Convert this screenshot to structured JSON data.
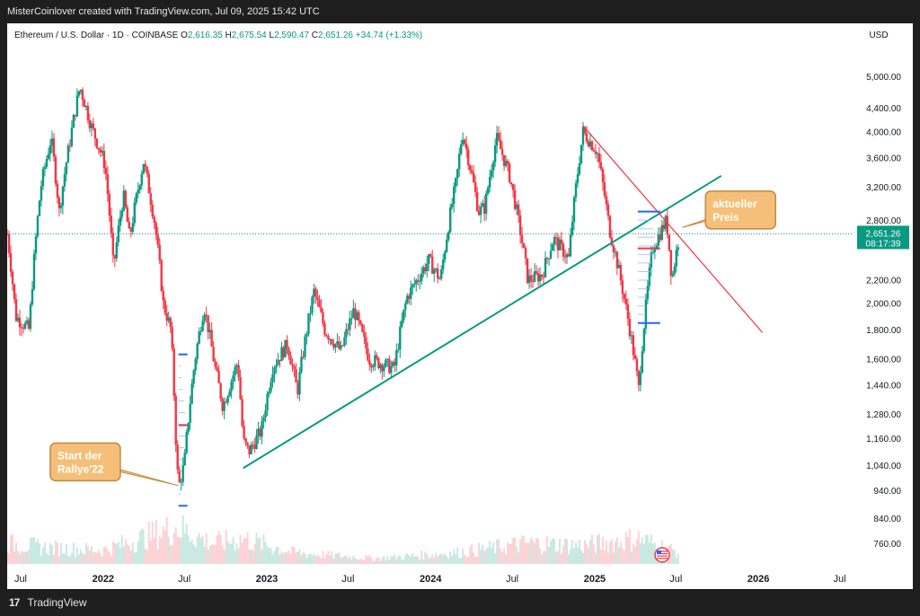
{
  "header": {
    "credit": "MisterCoinlover created with TradingView.com, Jul 09, 2025 15:42 UTC"
  },
  "footer": {
    "brand": "TradingView"
  },
  "chart_data": {
    "type": "candlestick",
    "symbol": "Ethereum / U.S. Dollar · 1D · COINBASE",
    "ohlc": {
      "o_label": "O",
      "o_value": "2,616.35",
      "h_label": "H",
      "h_value": "2,675.54",
      "l_label": "L",
      "l_value": "2,590.47",
      "c_label": "C",
      "c_value": "2,651.26",
      "change": "+34.74 (+1.33%)"
    },
    "currency": "USD",
    "y_scale": "log",
    "ylim": [
      700,
      5600
    ],
    "x_range": [
      "2021-06-01",
      "2026-08-01"
    ],
    "y_ticks": [
      {
        "value": 5000,
        "label": "5,000.00"
      },
      {
        "value": 4400,
        "label": "4,400.00"
      },
      {
        "value": 4000,
        "label": "4,000.00"
      },
      {
        "value": 3600,
        "label": "3,600.00"
      },
      {
        "value": 3200,
        "label": "3,200.00"
      },
      {
        "value": 2800,
        "label": "2,800.00"
      },
      {
        "value": 2200,
        "label": "2,200.00"
      },
      {
        "value": 2000,
        "label": "2,000.00"
      },
      {
        "value": 1800,
        "label": "1,800.00"
      },
      {
        "value": 1600,
        "label": "1,600.00"
      },
      {
        "value": 1440,
        "label": "1,440.00"
      },
      {
        "value": 1280,
        "label": "1,280.00"
      },
      {
        "value": 1160,
        "label": "1,160.00"
      },
      {
        "value": 1040,
        "label": "1,040.00"
      },
      {
        "value": 940,
        "label": "940.00"
      },
      {
        "value": 840,
        "label": "840.00"
      },
      {
        "value": 760,
        "label": "760.00"
      }
    ],
    "x_ticks": [
      {
        "date": "2021-07-01",
        "label": "Jul",
        "bold": false
      },
      {
        "date": "2022-01-01",
        "label": "2022",
        "bold": true
      },
      {
        "date": "2022-07-01",
        "label": "Jul",
        "bold": false
      },
      {
        "date": "2023-01-01",
        "label": "2023",
        "bold": true
      },
      {
        "date": "2023-07-01",
        "label": "Jul",
        "bold": false
      },
      {
        "date": "2024-01-01",
        "label": "2024",
        "bold": true
      },
      {
        "date": "2024-07-01",
        "label": "Jul",
        "bold": false
      },
      {
        "date": "2025-01-01",
        "label": "2025",
        "bold": true
      },
      {
        "date": "2025-07-01",
        "label": "Jul",
        "bold": false
      },
      {
        "date": "2026-01-01",
        "label": "2026",
        "bold": true
      },
      {
        "date": "2026-07-01",
        "label": "Jul",
        "bold": false
      }
    ],
    "price_path": [
      [
        "2021-06-01",
        2650
      ],
      [
        "2021-06-20",
        1900
      ],
      [
        "2021-07-20",
        1800
      ],
      [
        "2021-08-15",
        3200
      ],
      [
        "2021-09-07",
        3900
      ],
      [
        "2021-09-25",
        2900
      ],
      [
        "2021-10-20",
        3900
      ],
      [
        "2021-11-10",
        4800
      ],
      [
        "2021-12-05",
        4100
      ],
      [
        "2022-01-05",
        3500
      ],
      [
        "2022-01-24",
        2300
      ],
      [
        "2022-02-15",
        3100
      ],
      [
        "2022-03-01",
        2600
      ],
      [
        "2022-04-01",
        3550
      ],
      [
        "2022-04-25",
        2800
      ],
      [
        "2022-05-15",
        2000
      ],
      [
        "2022-06-01",
        1800
      ],
      [
        "2022-06-13",
        1100
      ],
      [
        "2022-06-18",
        950
      ],
      [
        "2022-07-01",
        1050
      ],
      [
        "2022-07-25",
        1600
      ],
      [
        "2022-08-14",
        1980
      ],
      [
        "2022-09-07",
        1550
      ],
      [
        "2022-09-25",
        1320
      ],
      [
        "2022-10-28",
        1580
      ],
      [
        "2022-11-09",
        1150
      ],
      [
        "2022-11-22",
        1100
      ],
      [
        "2022-12-20",
        1200
      ],
      [
        "2023-01-14",
        1550
      ],
      [
        "2023-02-16",
        1700
      ],
      [
        "2023-03-10",
        1400
      ],
      [
        "2023-04-16",
        2100
      ],
      [
        "2023-05-10",
        1800
      ],
      [
        "2023-06-15",
        1650
      ],
      [
        "2023-07-14",
        1950
      ],
      [
        "2023-08-17",
        1600
      ],
      [
        "2023-10-12",
        1540
      ],
      [
        "2023-11-09",
        2050
      ],
      [
        "2023-12-28",
        2380
      ],
      [
        "2024-01-23",
        2200
      ],
      [
        "2024-02-28",
        3300
      ],
      [
        "2024-03-12",
        4000
      ],
      [
        "2024-04-17",
        2900
      ],
      [
        "2024-05-01",
        2950
      ],
      [
        "2024-05-27",
        3900
      ],
      [
        "2024-06-25",
        3350
      ],
      [
        "2024-08-05",
        2200
      ],
      [
        "2024-09-06",
        2250
      ],
      [
        "2024-10-01",
        2600
      ],
      [
        "2024-11-04",
        2400
      ],
      [
        "2024-12-06",
        4000
      ],
      [
        "2025-01-06",
        3700
      ],
      [
        "2025-02-03",
        2700
      ],
      [
        "2025-03-10",
        2000
      ],
      [
        "2025-04-09",
        1420
      ],
      [
        "2025-05-10",
        2500
      ],
      [
        "2025-06-10",
        2800
      ],
      [
        "2025-06-22",
        2200
      ],
      [
        "2025-07-09",
        2651
      ]
    ],
    "volume_path": [
      [
        "2021-06-01",
        0.45
      ],
      [
        "2021-09-01",
        0.35
      ],
      [
        "2022-01-01",
        0.3
      ],
      [
        "2022-06-15",
        0.8
      ],
      [
        "2022-09-01",
        0.45
      ],
      [
        "2022-11-10",
        0.55
      ],
      [
        "2023-03-01",
        0.25
      ],
      [
        "2023-09-01",
        0.12
      ],
      [
        "2024-03-01",
        0.25
      ],
      [
        "2024-08-05",
        0.45
      ],
      [
        "2024-12-06",
        0.4
      ],
      [
        "2025-04-09",
        0.55
      ],
      [
        "2025-07-09",
        0.25
      ]
    ],
    "last_price": {
      "value": 2651.26,
      "label": "2,651.26",
      "countdown": "08:17:39"
    },
    "trendlines": [
      {
        "name": "support",
        "color": "#089981",
        "from": [
          "2022-11-09",
          1030
        ],
        "to": [
          "2025-10-10",
          3350
        ]
      },
      {
        "name": "resistance",
        "color": "#f23645",
        "from": [
          "2024-12-06",
          4100
        ],
        "to": [
          "2026-01-10",
          1780
        ]
      }
    ],
    "volume_profiles": [
      {
        "date_start": "2022-06-18",
        "date_end": "2022-07-08",
        "vah": 1630,
        "poc": 1225,
        "val": 885
      },
      {
        "date_start": "2025-04-07",
        "date_end": "2025-05-27",
        "vah": 2900,
        "poc": 2500,
        "val": 1850
      }
    ],
    "callouts": [
      {
        "text_line1": "Start der",
        "text_line2": "Rallye'22",
        "point": [
          "2022-06-18",
          960
        ],
        "box_date": "2021-09-05",
        "box_price": 1140
      },
      {
        "text_line1": "aktueller",
        "text_line2": "Preis",
        "point": [
          "2025-07-15",
          2720
        ],
        "box_date": "2025-09-05",
        "box_price": 3150
      }
    ],
    "colors": {
      "up": "#089981",
      "down": "#f23645",
      "callout_fill": "#f5bf79",
      "callout_border": "#bf8a3f",
      "profile": "#2962ff"
    }
  }
}
